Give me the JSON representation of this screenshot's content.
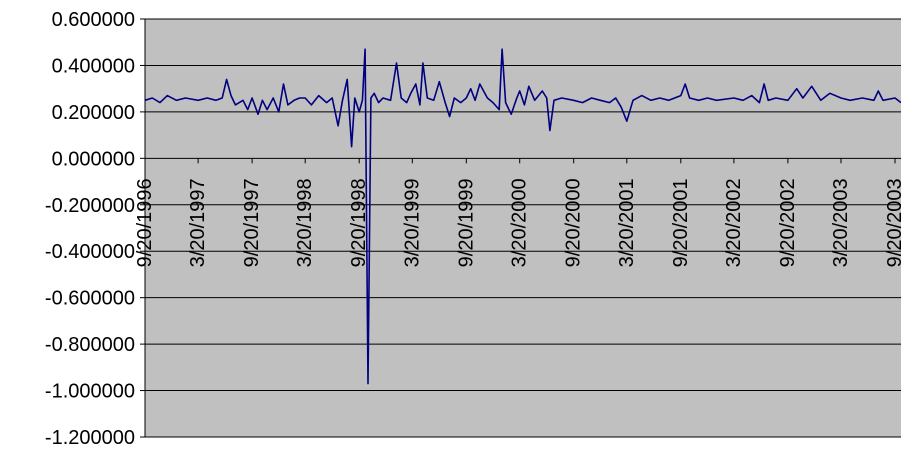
{
  "chart_data": {
    "type": "line",
    "title": "",
    "xlabel": "",
    "ylabel": "",
    "ylim": [
      -1.2,
      0.6
    ],
    "grid": "horizontal major gridlines",
    "legend": "none",
    "colors": {
      "plot_area": "#c0c0c0",
      "line": "#000080",
      "gridline": "#000000"
    },
    "y_ticks": [
      "0.600000",
      "0.400000",
      "0.200000",
      "0.000000",
      "-0.200000",
      "-0.400000",
      "-0.600000",
      "-0.800000",
      "-1.000000",
      "-1.200000"
    ],
    "x_tick_labels": [
      "9/20/1996",
      "3/20/1997",
      "9/20/1997",
      "3/20/1998",
      "9/20/1998",
      "3/20/1999",
      "9/20/1999",
      "3/20/2000",
      "9/20/2000",
      "3/20/2001",
      "9/20/2001",
      "3/20/2002",
      "9/20/2002",
      "3/20/2003",
      "9/20/2003"
    ],
    "x_range": [
      "9/20/1996",
      "9/20/2003"
    ],
    "series": [
      {
        "points": [
          [
            "9/20/1996",
            0.25
          ],
          [
            "10/15/1996",
            0.26
          ],
          [
            "11/10/1996",
            0.24
          ],
          [
            "12/5/1996",
            0.27
          ],
          [
            "1/5/1997",
            0.25
          ],
          [
            "2/5/1997",
            0.26
          ],
          [
            "3/20/1997",
            0.25
          ],
          [
            "4/20/1997",
            0.26
          ],
          [
            "5/20/1997",
            0.25
          ],
          [
            "6/10/1997",
            0.26
          ],
          [
            "6/25/1997",
            0.34
          ],
          [
            "7/10/1997",
            0.27
          ],
          [
            "7/25/1997",
            0.23
          ],
          [
            "8/20/1997",
            0.25
          ],
          [
            "9/5/1997",
            0.21
          ],
          [
            "9/20/1997",
            0.26
          ],
          [
            "10/10/1997",
            0.19
          ],
          [
            "10/25/1997",
            0.25
          ],
          [
            "11/10/1997",
            0.21
          ],
          [
            "12/1/1997",
            0.26
          ],
          [
            "12/20/1997",
            0.2
          ],
          [
            "1/5/1998",
            0.32
          ],
          [
            "1/20/1998",
            0.23
          ],
          [
            "2/10/1998",
            0.25
          ],
          [
            "3/1/1998",
            0.26
          ],
          [
            "3/20/1998",
            0.26
          ],
          [
            "4/10/1998",
            0.23
          ],
          [
            "5/5/1998",
            0.27
          ],
          [
            "6/1/1998",
            0.24
          ],
          [
            "6/20/1998",
            0.26
          ],
          [
            "7/10/1998",
            0.14
          ],
          [
            "7/25/1998",
            0.25
          ],
          [
            "8/10/1998",
            0.34
          ],
          [
            "8/25/1998",
            0.05
          ],
          [
            "9/5/1998",
            0.26
          ],
          [
            "9/20/1998",
            0.2
          ],
          [
            "10/1/1998",
            0.25
          ],
          [
            "10/10/1998",
            0.47
          ],
          [
            "10/20/1998",
            -0.97
          ],
          [
            "10/30/1998",
            0.26
          ],
          [
            "11/10/1998",
            0.28
          ],
          [
            "11/25/1998",
            0.24
          ],
          [
            "12/10/1998",
            0.26
          ],
          [
            "1/5/1999",
            0.25
          ],
          [
            "1/25/1999",
            0.41
          ],
          [
            "2/10/1999",
            0.26
          ],
          [
            "3/1/1999",
            0.24
          ],
          [
            "3/15/1999",
            0.28
          ],
          [
            "4/1/1999",
            0.32
          ],
          [
            "4/15/1999",
            0.23
          ],
          [
            "4/25/1999",
            0.41
          ],
          [
            "5/10/1999",
            0.26
          ],
          [
            "6/1/1999",
            0.25
          ],
          [
            "6/20/1999",
            0.33
          ],
          [
            "7/10/1999",
            0.24
          ],
          [
            "7/25/1999",
            0.18
          ],
          [
            "8/10/1999",
            0.26
          ],
          [
            "9/1/1999",
            0.24
          ],
          [
            "9/20/1999",
            0.26
          ],
          [
            "10/5/1999",
            0.3
          ],
          [
            "10/20/1999",
            0.25
          ],
          [
            "11/5/1999",
            0.32
          ],
          [
            "12/1/1999",
            0.26
          ],
          [
            "12/20/1999",
            0.24
          ],
          [
            "1/10/2000",
            0.21
          ],
          [
            "1/20/2000",
            0.47
          ],
          [
            "2/1/2000",
            0.24
          ],
          [
            "2/20/2000",
            0.19
          ],
          [
            "3/10/2000",
            0.26
          ],
          [
            "3/20/2000",
            0.29
          ],
          [
            "4/5/2000",
            0.23
          ],
          [
            "4/20/2000",
            0.31
          ],
          [
            "5/10/2000",
            0.25
          ],
          [
            "6/5/2000",
            0.29
          ],
          [
            "6/20/2000",
            0.26
          ],
          [
            "7/1/2000",
            0.12
          ],
          [
            "7/15/2000",
            0.25
          ],
          [
            "8/10/2000",
            0.26
          ],
          [
            "9/20/2000",
            0.25
          ],
          [
            "10/20/2000",
            0.24
          ],
          [
            "11/20/2000",
            0.26
          ],
          [
            "12/20/2000",
            0.25
          ],
          [
            "1/20/2001",
            0.24
          ],
          [
            "2/10/2001",
            0.26
          ],
          [
            "3/1/2001",
            0.22
          ],
          [
            "3/20/2001",
            0.16
          ],
          [
            "4/10/2001",
            0.25
          ],
          [
            "5/10/2001",
            0.27
          ],
          [
            "6/10/2001",
            0.25
          ],
          [
            "7/10/2001",
            0.26
          ],
          [
            "8/10/2001",
            0.25
          ],
          [
            "9/20/2001",
            0.27
          ],
          [
            "10/5/2001",
            0.32
          ],
          [
            "10/20/2001",
            0.26
          ],
          [
            "11/20/2001",
            0.25
          ],
          [
            "12/20/2001",
            0.26
          ],
          [
            "1/20/2002",
            0.25
          ],
          [
            "3/20/2002",
            0.26
          ],
          [
            "4/20/2002",
            0.25
          ],
          [
            "5/20/2002",
            0.27
          ],
          [
            "6/15/2002",
            0.24
          ],
          [
            "7/1/2002",
            0.32
          ],
          [
            "7/15/2002",
            0.25
          ],
          [
            "8/10/2002",
            0.26
          ],
          [
            "9/20/2002",
            0.25
          ],
          [
            "10/20/2002",
            0.3
          ],
          [
            "11/10/2002",
            0.26
          ],
          [
            "12/10/2002",
            0.31
          ],
          [
            "1/10/2003",
            0.25
          ],
          [
            "2/10/2003",
            0.28
          ],
          [
            "3/20/2003",
            0.26
          ],
          [
            "4/20/2003",
            0.25
          ],
          [
            "6/1/2003",
            0.26
          ],
          [
            "7/10/2003",
            0.25
          ],
          [
            "7/25/2003",
            0.29
          ],
          [
            "8/10/2003",
            0.25
          ],
          [
            "9/20/2003",
            0.26
          ],
          [
            "10/15/2003",
            0.24
          ]
        ]
      }
    ]
  }
}
